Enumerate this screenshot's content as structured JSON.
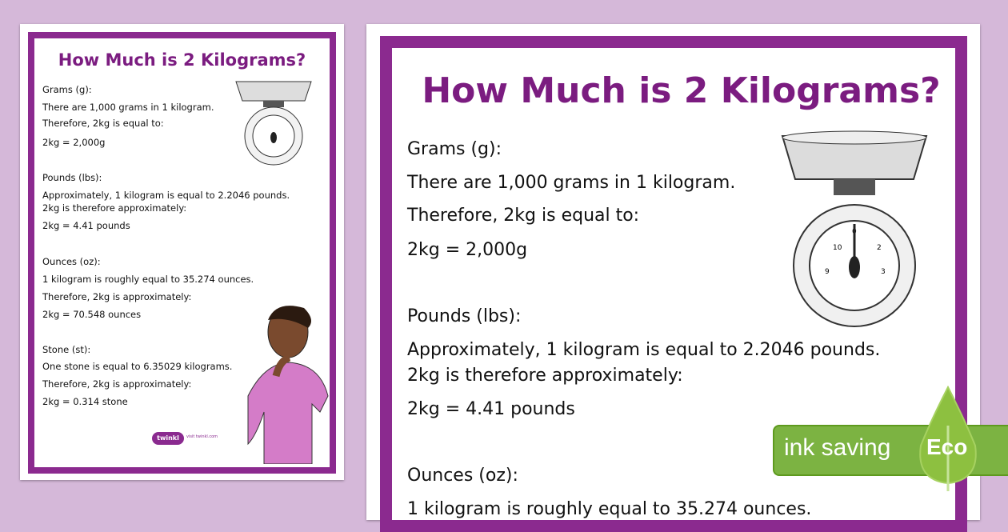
{
  "poster": {
    "title": "How Much is 2 Kilograms?",
    "sections": [
      {
        "heading": "Grams (g):",
        "lines": [
          "There are 1,000 grams in 1 kilogram.",
          "Therefore, 2kg is equal to:",
          "2kg = 2,000g"
        ]
      },
      {
        "heading": "Pounds (lbs):",
        "lines": [
          "Approximately, 1 kilogram is equal to 2.2046 pounds.",
          "2kg is therefore approximately:",
          "2kg = 4.41 pounds"
        ]
      },
      {
        "heading": "Ounces (oz):",
        "lines": [
          "1 kilogram is roughly equal to 35.274 ounces.",
          "Therefore, 2kg is approximately:",
          "2kg = 70.548 ounces"
        ]
      },
      {
        "heading": "Stone (st):",
        "lines": [
          "One stone is equal to 6.35029 kilograms.",
          "Therefore, 2kg is approximately:",
          "2kg = 0.314 stone"
        ]
      }
    ],
    "logo": "twinkl",
    "logo_url_text": "visit twinkl.com"
  },
  "eco_badge": {
    "label": "ink saving",
    "tag": "Eco"
  },
  "colors": {
    "background": "#d5b8d9",
    "frame": "#8b2a8f",
    "title": "#7b1c80",
    "eco": "#7cb342"
  }
}
